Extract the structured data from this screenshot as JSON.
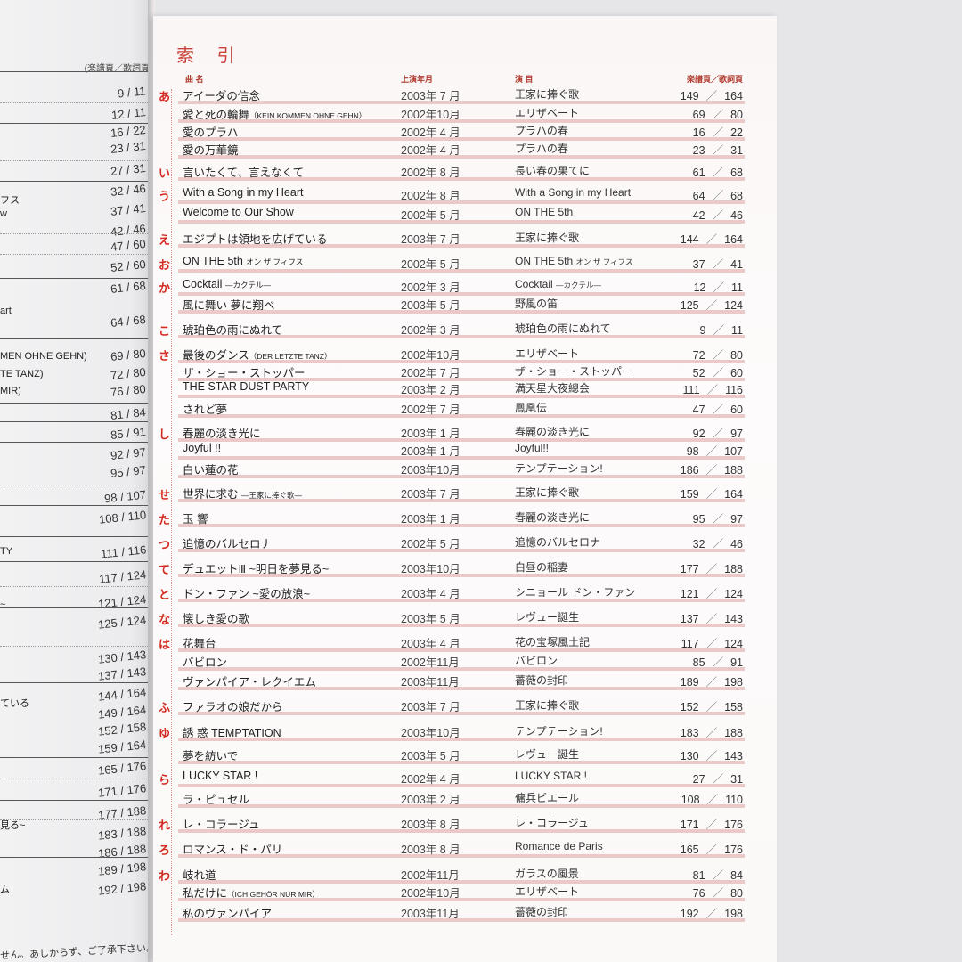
{
  "left_page": {
    "header": "(楽譜頁／歌詞頁",
    "numbers": [
      "9 / 11",
      "12 / 11",
      "16 / 22",
      "23 / 31",
      "27 / 31",
      "32 / 46",
      "37 / 41",
      "42 / 46",
      "47 / 60",
      "52 / 60",
      "61 / 68",
      "64 / 68",
      "69 / 80",
      "72 / 80",
      "76 / 80",
      "81 / 84",
      "85 / 91",
      "92 / 97",
      "95 / 97",
      "98 / 107",
      "108 / 110",
      "111 / 116",
      "117 / 124",
      "121 / 124",
      "125 / 124",
      "130 / 143",
      "137 / 143",
      "144 / 164",
      "149 / 164",
      "152 / 158",
      "159 / 164",
      "165 / 176",
      "171 / 176",
      "177 / 188",
      "183 / 188",
      "186 / 188",
      "189 / 198",
      "192 / 198"
    ],
    "fragments": [
      "フス",
      "w",
      "art",
      "MEN OHNE GEHN)",
      "TE TANZ)",
      "MIR)",
      "TY",
      "~",
      "ている",
      "見る~",
      "ム"
    ],
    "footer": "せん。あしからず、ご了承下さい。"
  },
  "index": {
    "title": "索 引",
    "columns": {
      "title": "曲 名",
      "date": "上演年月",
      "show": "演 目",
      "pages": "楽譜頁／歌詞頁"
    },
    "rows": [
      {
        "kana": "あ",
        "title": "アイーダの信念",
        "date": "2003年 7 月",
        "show": "王家に捧ぐ歌",
        "score": "149",
        "lyrics": "164"
      },
      {
        "kana": "",
        "title": "愛と死の輪舞（KEIN KOMMEN OHNE GEHN）",
        "date": "2002年10月",
        "show": "エリザベート",
        "score": "69",
        "lyrics": "80"
      },
      {
        "kana": "",
        "title": "愛のプラハ",
        "date": "2002年 4 月",
        "show": "プラハの春",
        "score": "16",
        "lyrics": "22"
      },
      {
        "kana": "",
        "title": "愛の万華鏡",
        "date": "2002年 4 月",
        "show": "プラハの春",
        "score": "23",
        "lyrics": "31"
      },
      {
        "kana": "い",
        "title": "言いたくて、言えなくて",
        "date": "2002年 8 月",
        "show": "長い春の果てに",
        "score": "61",
        "lyrics": "68"
      },
      {
        "kana": "う",
        "title": "With a Song in my Heart",
        "date": "2002年 8 月",
        "show": "With a Song in my Heart",
        "score": "64",
        "lyrics": "68"
      },
      {
        "kana": "",
        "title": "Welcome to Our Show",
        "date": "2002年 5 月",
        "show": "ON THE  5th",
        "score": "42",
        "lyrics": "46"
      },
      {
        "kana": "え",
        "title": "エジプトは領地を広げている",
        "date": "2003年 7 月",
        "show": "王家に捧ぐ歌",
        "score": "144",
        "lyrics": "164"
      },
      {
        "kana": "お",
        "title": "ON THE  5th オン ザ フィフス",
        "date": "2002年 5 月",
        "show": "ON THE  5th オン ザ フィフス",
        "score": "37",
        "lyrics": "41"
      },
      {
        "kana": "か",
        "title": "Cocktail —カクテル—",
        "date": "2002年 3 月",
        "show": "Cocktail —カクテル—",
        "score": "12",
        "lyrics": "11"
      },
      {
        "kana": "",
        "title": "風に舞い 夢に翔べ",
        "date": "2003年 5 月",
        "show": "野風の笛",
        "score": "125",
        "lyrics": "124"
      },
      {
        "kana": "こ",
        "title": "琥珀色の雨にぬれて",
        "date": "2002年 3 月",
        "show": "琥珀色の雨にぬれて",
        "score": "9",
        "lyrics": "11"
      },
      {
        "kana": "さ",
        "title": "最後のダンス（DER LETZTE TANZ）",
        "date": "2002年10月",
        "show": "エリザベート",
        "score": "72",
        "lyrics": "80"
      },
      {
        "kana": "",
        "title": "ザ・ショー・ストッパー",
        "date": "2002年 7 月",
        "show": "ザ・ショー・ストッパー",
        "score": "52",
        "lyrics": "60"
      },
      {
        "kana": "",
        "title": "THE STAR DUST PARTY",
        "date": "2003年 2 月",
        "show": "満天星大夜總会",
        "score": "111",
        "lyrics": "116"
      },
      {
        "kana": "",
        "title": "されど夢",
        "date": "2002年 7 月",
        "show": "鳳凰伝",
        "score": "47",
        "lyrics": "60"
      },
      {
        "kana": "し",
        "title": "春麗の淡き光に",
        "date": "2003年 1 月",
        "show": "春麗の淡き光に",
        "score": "92",
        "lyrics": "97"
      },
      {
        "kana": "",
        "title": "Joyful !!",
        "date": "2003年 1 月",
        "show": "Joyful!!",
        "score": "98",
        "lyrics": "107"
      },
      {
        "kana": "",
        "title": "白い蓮の花",
        "date": "2003年10月",
        "show": "テンプテーション!",
        "score": "186",
        "lyrics": "188"
      },
      {
        "kana": "せ",
        "title": "世界に求む —王家に捧ぐ歌—",
        "date": "2003年 7 月",
        "show": "王家に捧ぐ歌",
        "score": "159",
        "lyrics": "164"
      },
      {
        "kana": "た",
        "title": "玉 響",
        "date": "2003年 1 月",
        "show": "春麗の淡き光に",
        "score": "95",
        "lyrics": "97"
      },
      {
        "kana": "つ",
        "title": "追憶のバルセロナ",
        "date": "2002年 5 月",
        "show": "追憶のバルセロナ",
        "score": "32",
        "lyrics": "46"
      },
      {
        "kana": "て",
        "title": "デュエットⅢ ~明日を夢見る~",
        "date": "2003年10月",
        "show": "白昼の稲妻",
        "score": "177",
        "lyrics": "188"
      },
      {
        "kana": "と",
        "title": "ドン・ファン ~愛の放浪~",
        "date": "2003年 4 月",
        "show": "シニョール ドン・ファン",
        "score": "121",
        "lyrics": "124"
      },
      {
        "kana": "な",
        "title": "懐しき愛の歌",
        "date": "2003年 5 月",
        "show": "レヴュー誕生",
        "score": "137",
        "lyrics": "143"
      },
      {
        "kana": "は",
        "title": "花舞台",
        "date": "2003年 4 月",
        "show": "花の宝塚風土記",
        "score": "117",
        "lyrics": "124"
      },
      {
        "kana": "",
        "title": "バビロン",
        "date": "2002年11月",
        "show": "バビロン",
        "score": "85",
        "lyrics": "91"
      },
      {
        "kana": "",
        "title": "ヴァンパイア・レクイエム",
        "date": "2003年11月",
        "show": "薔薇の封印",
        "score": "189",
        "lyrics": "198"
      },
      {
        "kana": "ふ",
        "title": "ファラオの娘だから",
        "date": "2003年 7 月",
        "show": "王家に捧ぐ歌",
        "score": "152",
        "lyrics": "158"
      },
      {
        "kana": "ゆ",
        "title": "誘 惑 TEMPTATION",
        "date": "2003年10月",
        "show": "テンプテーション!",
        "score": "183",
        "lyrics": "188"
      },
      {
        "kana": "",
        "title": "夢を紡いで",
        "date": "2003年 5 月",
        "show": "レヴュー誕生",
        "score": "130",
        "lyrics": "143"
      },
      {
        "kana": "ら",
        "title": "LUCKY STAR !",
        "date": "2002年 4 月",
        "show": "LUCKY STAR !",
        "score": "27",
        "lyrics": "31"
      },
      {
        "kana": "",
        "title": "ラ・ピュセル",
        "date": "2003年 2 月",
        "show": "傭兵ピエール",
        "score": "108",
        "lyrics": "110"
      },
      {
        "kana": "れ",
        "title": "レ・コラージュ",
        "date": "2003年 8 月",
        "show": "レ・コラージュ",
        "score": "171",
        "lyrics": "176"
      },
      {
        "kana": "ろ",
        "title": "ロマンス・ド・パリ",
        "date": "2003年 8 月",
        "show": "Romance de Paris",
        "score": "165",
        "lyrics": "176"
      },
      {
        "kana": "わ",
        "title": "岐れ道",
        "date": "2002年11月",
        "show": "ガラスの風景",
        "score": "81",
        "lyrics": "84"
      },
      {
        "kana": "",
        "title": "私だけに（ICH GEHÖR NUR MIR）",
        "date": "2002年10月",
        "show": "エリザベート",
        "score": "76",
        "lyrics": "80"
      },
      {
        "kana": "",
        "title": "私のヴァンパイア",
        "date": "2003年11月",
        "show": "薔薇の封印",
        "score": "192",
        "lyrics": "198"
      }
    ],
    "page_separator": "／"
  },
  "colors": {
    "accent_red": "#d32a20",
    "row_bar": "#ecc9c9",
    "background": "#e6e6e8"
  }
}
